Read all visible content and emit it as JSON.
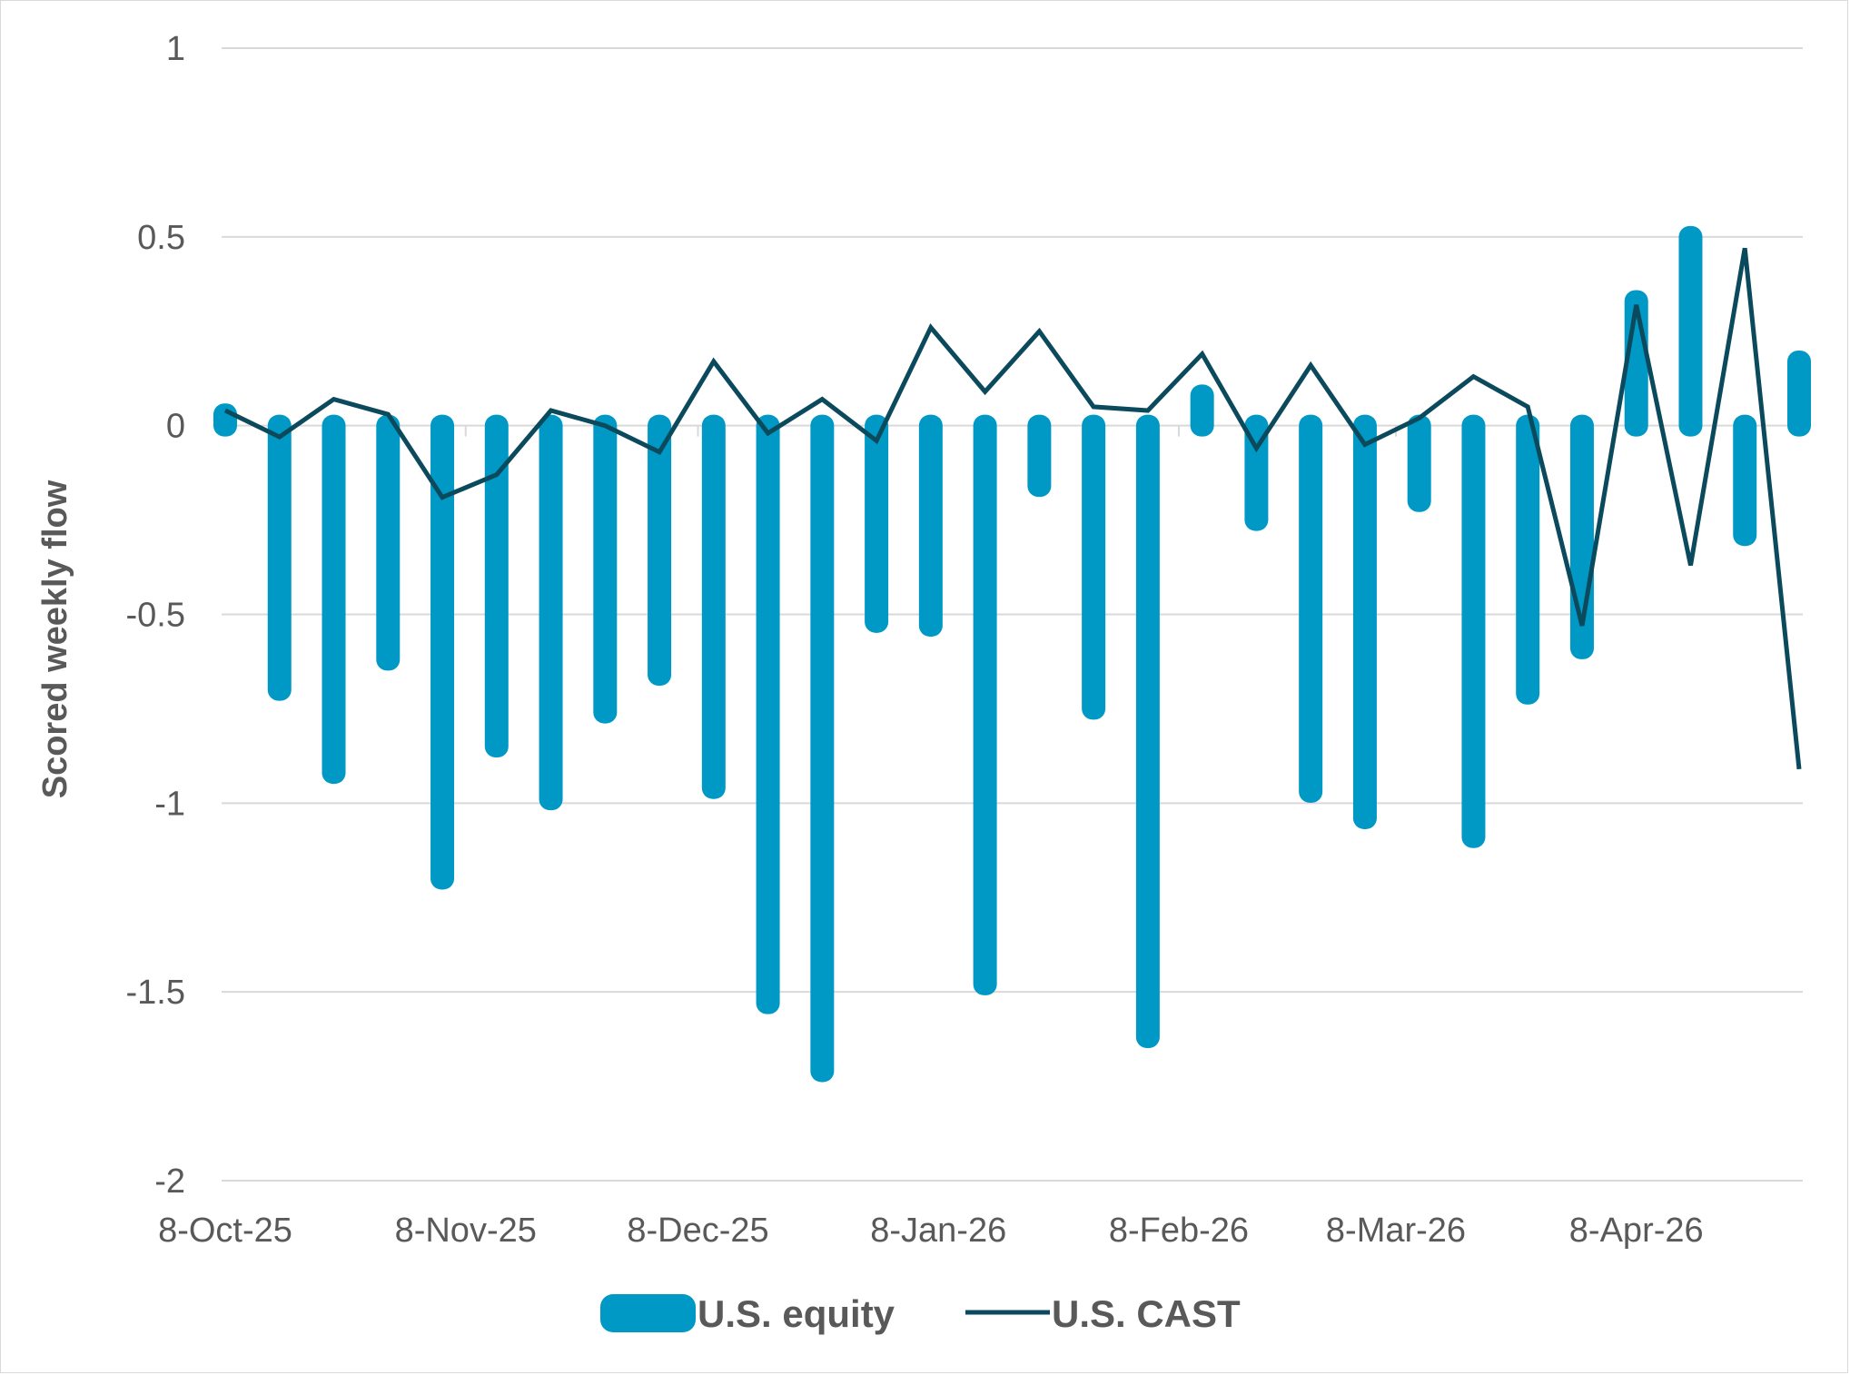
{
  "chart_data": {
    "type": "bar+line",
    "ylabel": "Scored weekly flow",
    "xlabel": "",
    "ylim": [
      -2,
      1
    ],
    "yticks": [
      1,
      0.5,
      0,
      -0.5,
      -1,
      -1.5,
      -2
    ],
    "ytick_labels": [
      "1",
      "0.5",
      "0",
      "-0.5",
      "-1",
      "-1.5",
      "-2"
    ],
    "xtick_labels": [
      {
        "label": "8-Oct-25",
        "index": 0
      },
      {
        "label": "8-Nov-25",
        "index": 4.43
      },
      {
        "label": "8-Dec-25",
        "index": 8.71
      },
      {
        "label": "8-Jan-26",
        "index": 13.14
      },
      {
        "label": "8-Feb-26",
        "index": 17.57
      },
      {
        "label": "8-Mar-26",
        "index": 21.57
      },
      {
        "label": "8-Apr-26",
        "index": 26.0
      }
    ],
    "grid": true,
    "legend_position": "bottom",
    "colors": {
      "equity": "#0099c6",
      "cast": "#0b4a5c",
      "grid": "#d9d9d9",
      "text": "#595959"
    },
    "series": [
      {
        "name": "U.S. equity",
        "type": "bar",
        "values": [
          0.03,
          -0.7,
          -0.92,
          -0.62,
          -1.2,
          -0.85,
          -0.99,
          -0.76,
          -0.66,
          -0.96,
          -1.53,
          -1.71,
          -0.52,
          -0.53,
          -1.48,
          -0.16,
          -0.75,
          -1.62,
          0.08,
          -0.25,
          -0.97,
          -1.04,
          -0.2,
          -1.09,
          -0.71,
          -0.59,
          0.33,
          0.5,
          -0.29,
          0.17
        ]
      },
      {
        "name": "U.S. CAST",
        "type": "line",
        "values": [
          0.04,
          -0.03,
          0.07,
          0.03,
          -0.19,
          -0.13,
          0.04,
          0.0,
          -0.07,
          0.17,
          -0.02,
          0.07,
          -0.04,
          0.26,
          0.09,
          0.25,
          0.05,
          0.04,
          0.19,
          -0.06,
          0.16,
          -0.05,
          0.02,
          0.13,
          0.05,
          -0.53,
          0.32,
          -0.37,
          0.47,
          -0.91
        ]
      }
    ]
  }
}
